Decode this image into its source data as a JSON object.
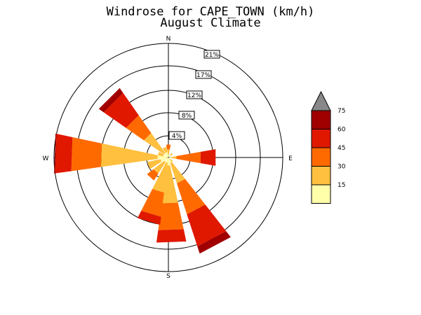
{
  "chart_data": {
    "type": "windrose",
    "title": "Windrose for CAPE_TOWN (km/h)",
    "subtitle": "August Climate",
    "directions": {
      "north": "N",
      "east": "E",
      "south": "S",
      "west": "W"
    },
    "ring_labels": [
      "4%",
      "8%",
      "12%",
      "17%",
      "21%"
    ],
    "ring_values": [
      4,
      8,
      12,
      17,
      21
    ],
    "speed_bins": [
      "0-15",
      "15-30",
      "30-45",
      "45-60",
      "60-75",
      ">75"
    ],
    "legend_ticks": [
      "15",
      "30",
      "45",
      "60",
      "75"
    ],
    "colors": [
      "#ffffaa",
      "#ffc040",
      "#ff6a00",
      "#e01800",
      "#a00000",
      "#888888"
    ],
    "series": [
      {
        "direction": "N",
        "cumulative_percent": [
          0.5,
          1.5,
          2.4
        ]
      },
      {
        "direction": "NE",
        "cumulative_percent": [
          0.5,
          1.0
        ]
      },
      {
        "direction": "E",
        "cumulative_percent": [
          0.5,
          1.5,
          6.0,
          8.8
        ]
      },
      {
        "direction": "SE",
        "cumulative_percent": [
          0.5,
          1.0
        ]
      },
      {
        "direction": "S",
        "cumulative_percent": [
          1.0,
          6.0
        ]
      },
      {
        "direction": "SSE",
        "cumulative_percent": [
          1.0,
          5.0,
          11.0,
          17.2,
          18.6
        ]
      },
      {
        "direction": "S",
        "cumulative_percent": [
          1.5,
          8.5,
          13.5,
          15.8
        ]
      },
      {
        "direction": "SSW",
        "cumulative_percent": [
          1.0,
          6.5,
          11.0,
          12.5
        ]
      },
      {
        "direction": "SW",
        "cumulative_percent": [
          1.0,
          3.5,
          5.0
        ]
      },
      {
        "direction": "WSW",
        "cumulative_percent": [
          1.5,
          4.0
        ]
      },
      {
        "direction": "W",
        "cumulative_percent": [
          2.0,
          12.5,
          18.0,
          21.0,
          21.2
        ]
      },
      {
        "direction": "WNW",
        "cumulative_percent": [
          1.0,
          2.0
        ]
      },
      {
        "direction": "NW",
        "cumulative_percent": [
          1.0,
          5.5,
          9.5,
          14.5,
          15.6
        ]
      },
      {
        "direction": "NNW",
        "cumulative_percent": [
          1.0,
          2.0
        ]
      }
    ],
    "bearings_deg": [
      0,
      45,
      90,
      135,
      180,
      152,
      178,
      197,
      222,
      248,
      272,
      292,
      315,
      338
    ]
  }
}
